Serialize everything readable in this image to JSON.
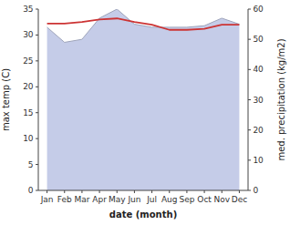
{
  "chart_data": {
    "type": "line",
    "categories": [
      "Jan",
      "Feb",
      "Mar",
      "Apr",
      "May",
      "Jun",
      "Jul",
      "Aug",
      "Sep",
      "Oct",
      "Nov",
      "Dec"
    ],
    "xlabel": "date (month)",
    "ylabel": "max temp (C)",
    "y2label": "med. precipitation (kg/m2)",
    "series": [
      {
        "type": "area",
        "axis": "y2",
        "color": "#c5cce8",
        "values": [
          54.0,
          49.0,
          50.0,
          57.0,
          60.0,
          55.0,
          54.0,
          54.0,
          54.0,
          54.5,
          57.0,
          55.0
        ]
      },
      {
        "type": "line",
        "color": "#cc3333",
        "values": [
          32.2,
          32.2,
          32.5,
          33.0,
          33.2,
          32.5,
          32.0,
          31.0,
          31.0,
          31.2,
          32.0,
          32.0
        ]
      }
    ],
    "ylim": [
      0,
      35
    ],
    "yticks": [
      0,
      5,
      10,
      15,
      20,
      25,
      30,
      35
    ],
    "y2lim": [
      0,
      60
    ],
    "y2ticks": [
      0,
      10,
      20,
      30,
      40,
      50,
      60
    ],
    "grid": false
  }
}
